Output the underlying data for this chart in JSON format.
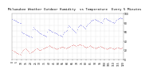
{
  "title": "Milwaukee Weather Outdoor Humidity  vs Temperature  Every 5 Minutes",
  "bg_color": "#ffffff",
  "plot_bg_color": "#ffffff",
  "grid_color": "#bbbbbb",
  "blue_color": "#0000cc",
  "red_color": "#cc0000",
  "title_fontsize": 3.0,
  "tick_fontsize": 2.2,
  "blue_y": [
    88,
    87,
    86,
    85,
    84,
    83,
    82,
    81,
    80,
    79,
    60,
    58,
    57,
    56,
    55,
    54,
    53,
    52,
    51,
    50,
    49,
    48,
    65,
    70,
    68,
    66,
    64,
    62,
    60,
    58,
    57,
    56,
    55,
    54,
    53,
    52,
    51,
    50,
    60,
    65,
    64,
    63,
    62,
    61,
    60,
    59,
    58,
    57,
    56,
    55,
    54,
    53,
    52,
    51,
    50,
    55,
    58,
    60,
    62,
    64,
    70,
    75,
    72,
    70,
    68,
    66,
    64,
    62,
    60,
    58,
    65,
    70,
    72,
    74,
    76,
    75,
    73,
    71,
    69,
    67,
    72,
    75,
    78,
    80,
    82,
    84,
    85,
    86,
    87,
    88,
    87,
    86,
    85,
    84,
    83,
    82,
    81,
    80,
    85,
    88,
    90,
    89,
    88,
    87,
    86,
    85,
    84,
    83,
    82,
    81,
    80,
    82,
    84,
    86,
    88,
    90,
    89,
    91,
    90,
    89
  ],
  "red_y": [
    20,
    18,
    17,
    16,
    15,
    14,
    13,
    12,
    11,
    10,
    15,
    18,
    20,
    22,
    24,
    22,
    20,
    18,
    16,
    14,
    15,
    16,
    17,
    18,
    20,
    22,
    24,
    23,
    22,
    21,
    20,
    21,
    22,
    23,
    24,
    25,
    26,
    27,
    28,
    29,
    30,
    29,
    28,
    27,
    26,
    25,
    24,
    23,
    22,
    23,
    24,
    25,
    26,
    27,
    28,
    27,
    26,
    25,
    24,
    25,
    26,
    27,
    28,
    29,
    30,
    31,
    32,
    31,
    30,
    29,
    30,
    31,
    32,
    33,
    32,
    31,
    30,
    29,
    28,
    27,
    26,
    27,
    28,
    29,
    30,
    29,
    28,
    27,
    26,
    25,
    24,
    25,
    26,
    27,
    28,
    29,
    28,
    27,
    26,
    25,
    24,
    23,
    22,
    23,
    24,
    25,
    26,
    25,
    24,
    23,
    22,
    23,
    24,
    25,
    26,
    25,
    24,
    23,
    24,
    25
  ],
  "ylim_min": 0,
  "ylim_max": 100,
  "xlim_min": 0,
  "xlim_max": 120
}
